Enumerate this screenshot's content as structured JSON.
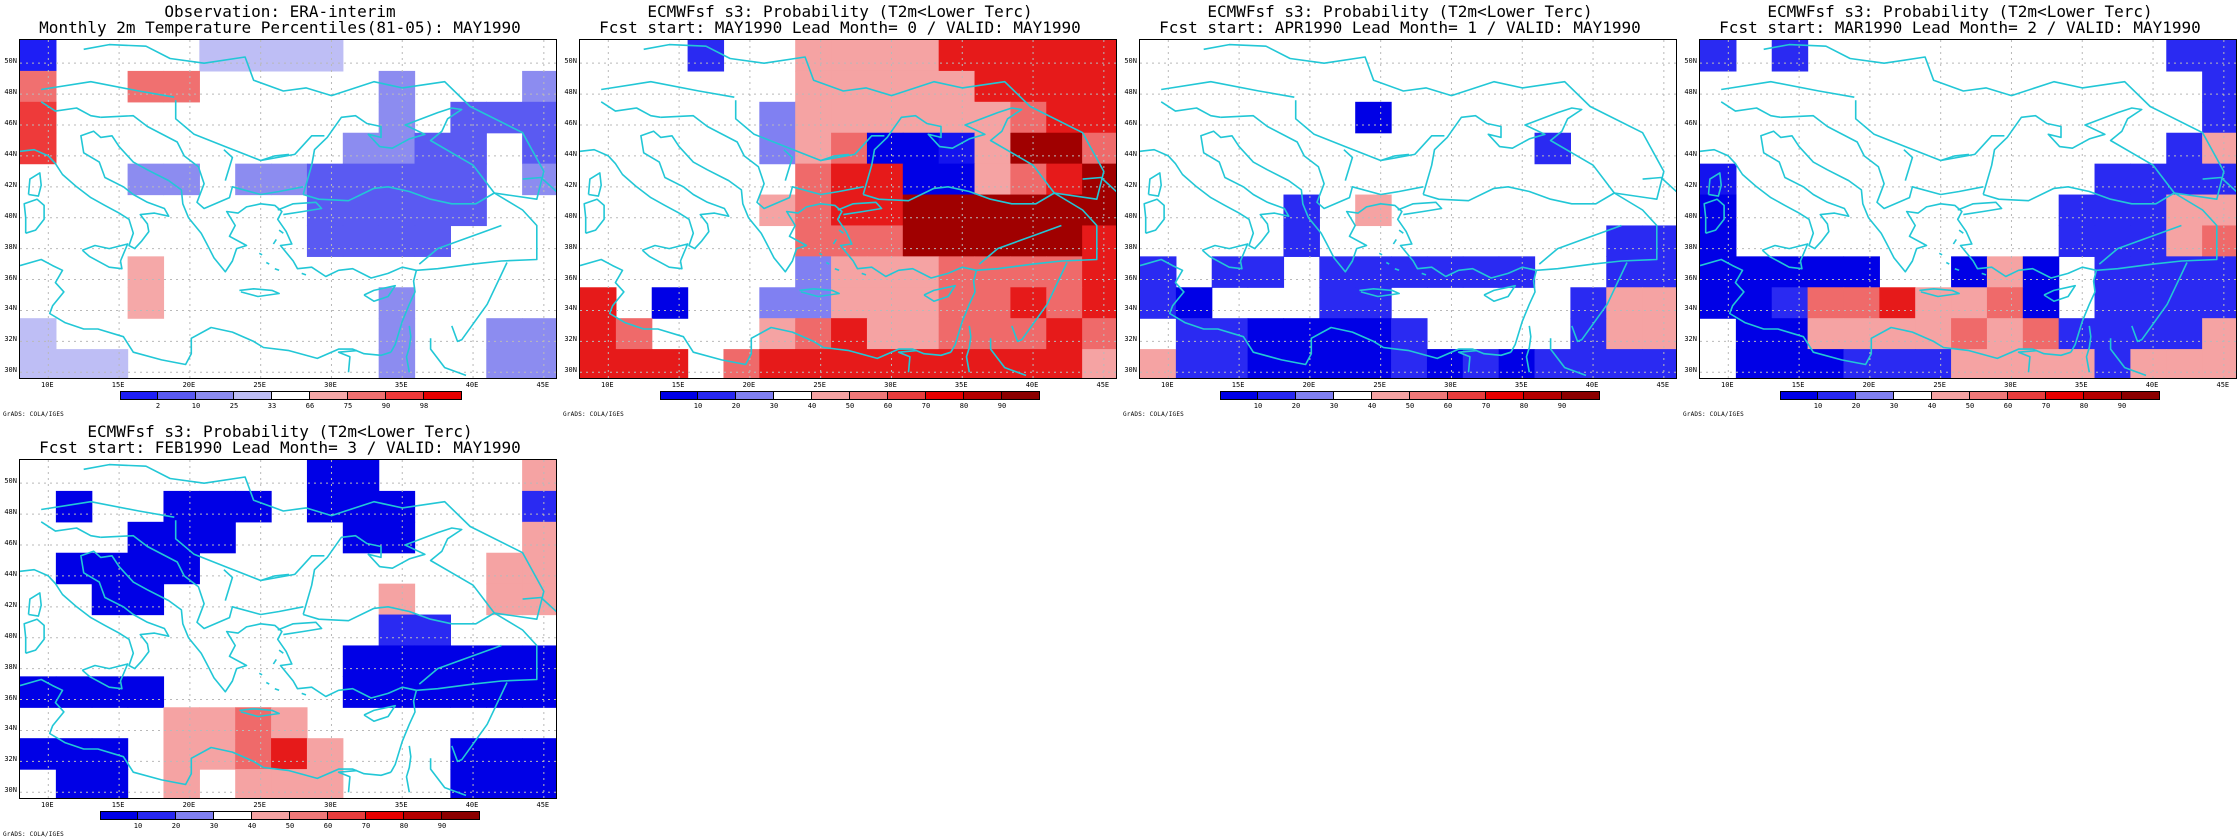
{
  "panels": [
    {
      "title_line1": "Observation: ERA-interim",
      "title_line2": "Monthly 2m Temperature Percentiles(81-05): MAY1990",
      "colorbar_labels": [
        "2",
        "10",
        "25",
        "33",
        "66",
        "75",
        "90",
        "98"
      ],
      "colorbar_colors": [
        "#1e1ef5",
        "#5a5af2",
        "#8c8cf0",
        "#bebef5",
        "#ffffff",
        "#f5a8a8",
        "#f07070",
        "#ee3a3a",
        "#e60000"
      ]
    },
    {
      "title_line1": "ECMWFsf s3: Probability (T2m<Lower Terc)",
      "title_line2": "Fcst start: MAY1990   Lead Month= 0 / VALID: MAY1990",
      "colorbar_labels": [
        "10",
        "20",
        "30",
        "40",
        "50",
        "60",
        "70",
        "80",
        "90"
      ],
      "colorbar_colors": [
        "#0000e6",
        "#2828f0",
        "#8080f2",
        "#ffffff",
        "#f5a3a3",
        "#f07878",
        "#e83c3c",
        "#e60000",
        "#b40000",
        "#8c0000"
      ]
    },
    {
      "title_line1": "ECMWFsf s3: Probability (T2m<Lower Terc)",
      "title_line2": "Fcst start: APR1990   Lead Month= 1 / VALID: MAY1990",
      "colorbar_labels": [
        "10",
        "20",
        "30",
        "40",
        "50",
        "60",
        "70",
        "80",
        "90"
      ],
      "colorbar_colors": [
        "#0000e6",
        "#2828f0",
        "#8080f2",
        "#ffffff",
        "#f5a3a3",
        "#f07878",
        "#e83c3c",
        "#e60000",
        "#b40000",
        "#8c0000"
      ]
    },
    {
      "title_line1": "ECMWFsf s3: Probability (T2m<Lower Terc)",
      "title_line2": "Fcst start: MAR1990   Lead Month= 2 / VALID: MAY1990",
      "colorbar_labels": [
        "10",
        "20",
        "30",
        "40",
        "50",
        "60",
        "70",
        "80",
        "90"
      ],
      "colorbar_colors": [
        "#0000e6",
        "#2828f0",
        "#8080f2",
        "#ffffff",
        "#f5a3a3",
        "#f07878",
        "#e83c3c",
        "#e60000",
        "#b40000",
        "#8c0000"
      ]
    },
    {
      "title_line1": "ECMWFsf s3: Probability (T2m<Lower Terc)",
      "title_line2": "Fcst start: FEB1990   Lead Month= 3 / VALID: MAY1990",
      "colorbar_labels": [
        "10",
        "20",
        "30",
        "40",
        "50",
        "60",
        "70",
        "80",
        "90"
      ],
      "colorbar_colors": [
        "#0000e6",
        "#2828f0",
        "#8080f2",
        "#ffffff",
        "#f5a3a3",
        "#f07878",
        "#e83c3c",
        "#e60000",
        "#b40000",
        "#8c0000"
      ]
    }
  ],
  "lat_labels": [
    "50N",
    "48N",
    "46N",
    "44N",
    "42N",
    "40N",
    "38N",
    "36N",
    "34N",
    "32N",
    "30N"
  ],
  "lon_labels": [
    "10E",
    "15E",
    "20E",
    "25E",
    "30E",
    "35E",
    "40E",
    "45E"
  ],
  "credit": "GrADS: COLA/IGES",
  "coast_color": "#22c7d6",
  "grids": [
    [
      "1,0,0,0,0,4,4,4,4,0,0,0,0,0,0",
      "6,0,0,6,6,0,0,0,0,0,3,0,0,0,3",
      "7,0,0,0,0,0,0,0,0,0,3,0,2,2,2",
      "7,0,0,0,0,0,0,0,0,3,3,2,2,0,2",
      "0,0,0,3,3,0,3,3,2,2,2,2,2,0,3",
      "0,0,0,0,0,0,0,0,2,2,2,2,2,0,0",
      "0,0,0,0,0,0,0,0,2,2,2,2,0,0,0",
      "0,0,0,5,0,0,0,0,0,0,0,0,0,0,0",
      "0,0,0,5,0,0,0,0,0,0,3,0,0,0,0",
      "4,0,0,0,0,0,0,0,0,0,3,0,0,3,3",
      "4,4,4,0,0,0,0,0,0,0,3,0,0,3,3"
    ],
    [
      "0,0,0,3,0,0,5,5,5,5,7,7,7,7,7",
      "0,0,0,0,0,0,5,5,5,5,5,7,7,7,7",
      "0,0,0,0,0,4,5,5,5,5,5,5,6,7,7",
      "0,0,0,0,0,4,5,6,1,1,2,5,8,8,6",
      "0,0,0,0,0,0,6,7,7,1,1,5,6,7,8",
      "0,0,0,0,0,5,6,7,7,8,8,8,8,8,8",
      "0,0,0,0,0,0,6,6,6,8,8,8,8,8,7",
      "0,0,0,0,0,0,4,5,5,5,6,6,6,6,7",
      "7,0,1,0,0,4,4,5,5,5,6,6,7,6,7",
      "7,6,0,0,0,5,6,7,5,5,6,6,6,7,6",
      "7,7,7,0,6,7,7,7,7,7,7,7,7,7,5"
    ],
    [
      "0,0,0,0,0,0,0,0,0,0,0,0,0,0,0",
      "0,0,0,0,0,0,0,0,0,0,0,0,0,0,0",
      "0,0,0,0,0,0,1,0,0,0,0,0,0,0,0",
      "0,0,0,0,0,0,0,0,0,0,0,3,0,0,0",
      "0,0,0,0,0,0,0,0,0,0,0,0,0,0,0",
      "0,0,0,0,3,0,5,0,0,0,0,0,0,0,0",
      "0,0,0,0,3,0,0,0,0,0,0,0,0,3,3",
      "3,0,3,3,0,3,3,3,3,3,3,0,0,3,3",
      "3,1,0,0,0,3,3,0,0,0,0,0,3,5,5",
      "0,3,3,1,1,1,1,3,0,0,0,0,3,5,5",
      "5,3,3,1,1,1,1,3,1,3,1,3,3,3,3"
    ],
    [
      "3,0,3,0,0,0,0,0,0,0,0,0,0,3,3",
      "0,0,0,0,0,0,0,0,0,0,0,0,0,0,3",
      "0,0,0,0,0,0,0,0,0,0,0,0,0,0,3",
      "0,0,0,0,0,0,0,0,0,0,0,0,0,3,5",
      "2,0,0,0,0,0,0,0,0,0,0,3,3,3,3",
      "1,0,0,0,0,0,0,0,0,0,3,3,3,5,5",
      "1,0,0,0,0,0,0,0,0,0,3,3,3,5,6",
      "1,1,1,1,1,0,0,1,5,1,0,3,3,3,3",
      "1,1,3,6,6,7,5,5,6,1,0,3,3,3,3",
      "0,1,1,5,5,5,5,6,5,6,3,3,3,3,5",
      "0,1,1,1,3,3,3,5,5,5,5,3,5,5,5"
    ],
    [
      "0,0,0,0,0,0,0,0,1,1,0,0,0,0,5",
      "0,1,0,0,1,1,1,0,1,1,1,0,0,0,3",
      "0,0,0,1,1,1,0,0,0,1,1,0,0,0,5",
      "0,1,1,1,1,0,0,0,0,0,0,0,0,5,5",
      "0,0,1,1,0,0,0,0,0,0,5,0,0,5,5",
      "0,0,0,0,0,0,0,0,0,0,3,3,0,0,0",
      "0,0,0,0,0,0,0,0,0,1,1,1,1,1,1",
      "1,1,1,1,0,0,0,0,0,1,1,1,1,1,1",
      "0,0,0,0,5,5,6,5,0,0,0,0,0,0,0",
      "1,1,1,0,5,5,6,7,5,0,0,0,1,1,1",
      "0,1,1,0,5,0,5,5,5,0,0,0,1,1,1"
    ]
  ]
}
